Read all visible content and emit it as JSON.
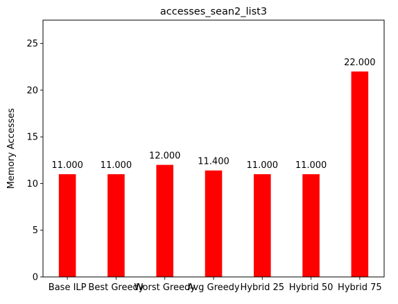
{
  "chart_data": {
    "type": "bar",
    "title": "accesses_sean2_list3",
    "xlabel": "",
    "ylabel": "Memory Accesses",
    "categories": [
      "Base ILP",
      "Best Greedy",
      "Worst Greedy",
      "Avg Greedy",
      "Hybrid 25",
      "Hybrid 50",
      "Hybrid 75"
    ],
    "values": [
      11.0,
      11.0,
      12.0,
      11.4,
      11.0,
      11.0,
      22.0
    ],
    "data_labels": [
      "11.000",
      "11.000",
      "12.000",
      "11.400",
      "11.000",
      "11.000",
      "22.000"
    ],
    "ylim": [
      0,
      27.5
    ],
    "yticks": [
      0,
      5,
      10,
      15,
      20,
      25
    ],
    "grid": false,
    "legend": "none",
    "bar_color": "#ff0000"
  }
}
